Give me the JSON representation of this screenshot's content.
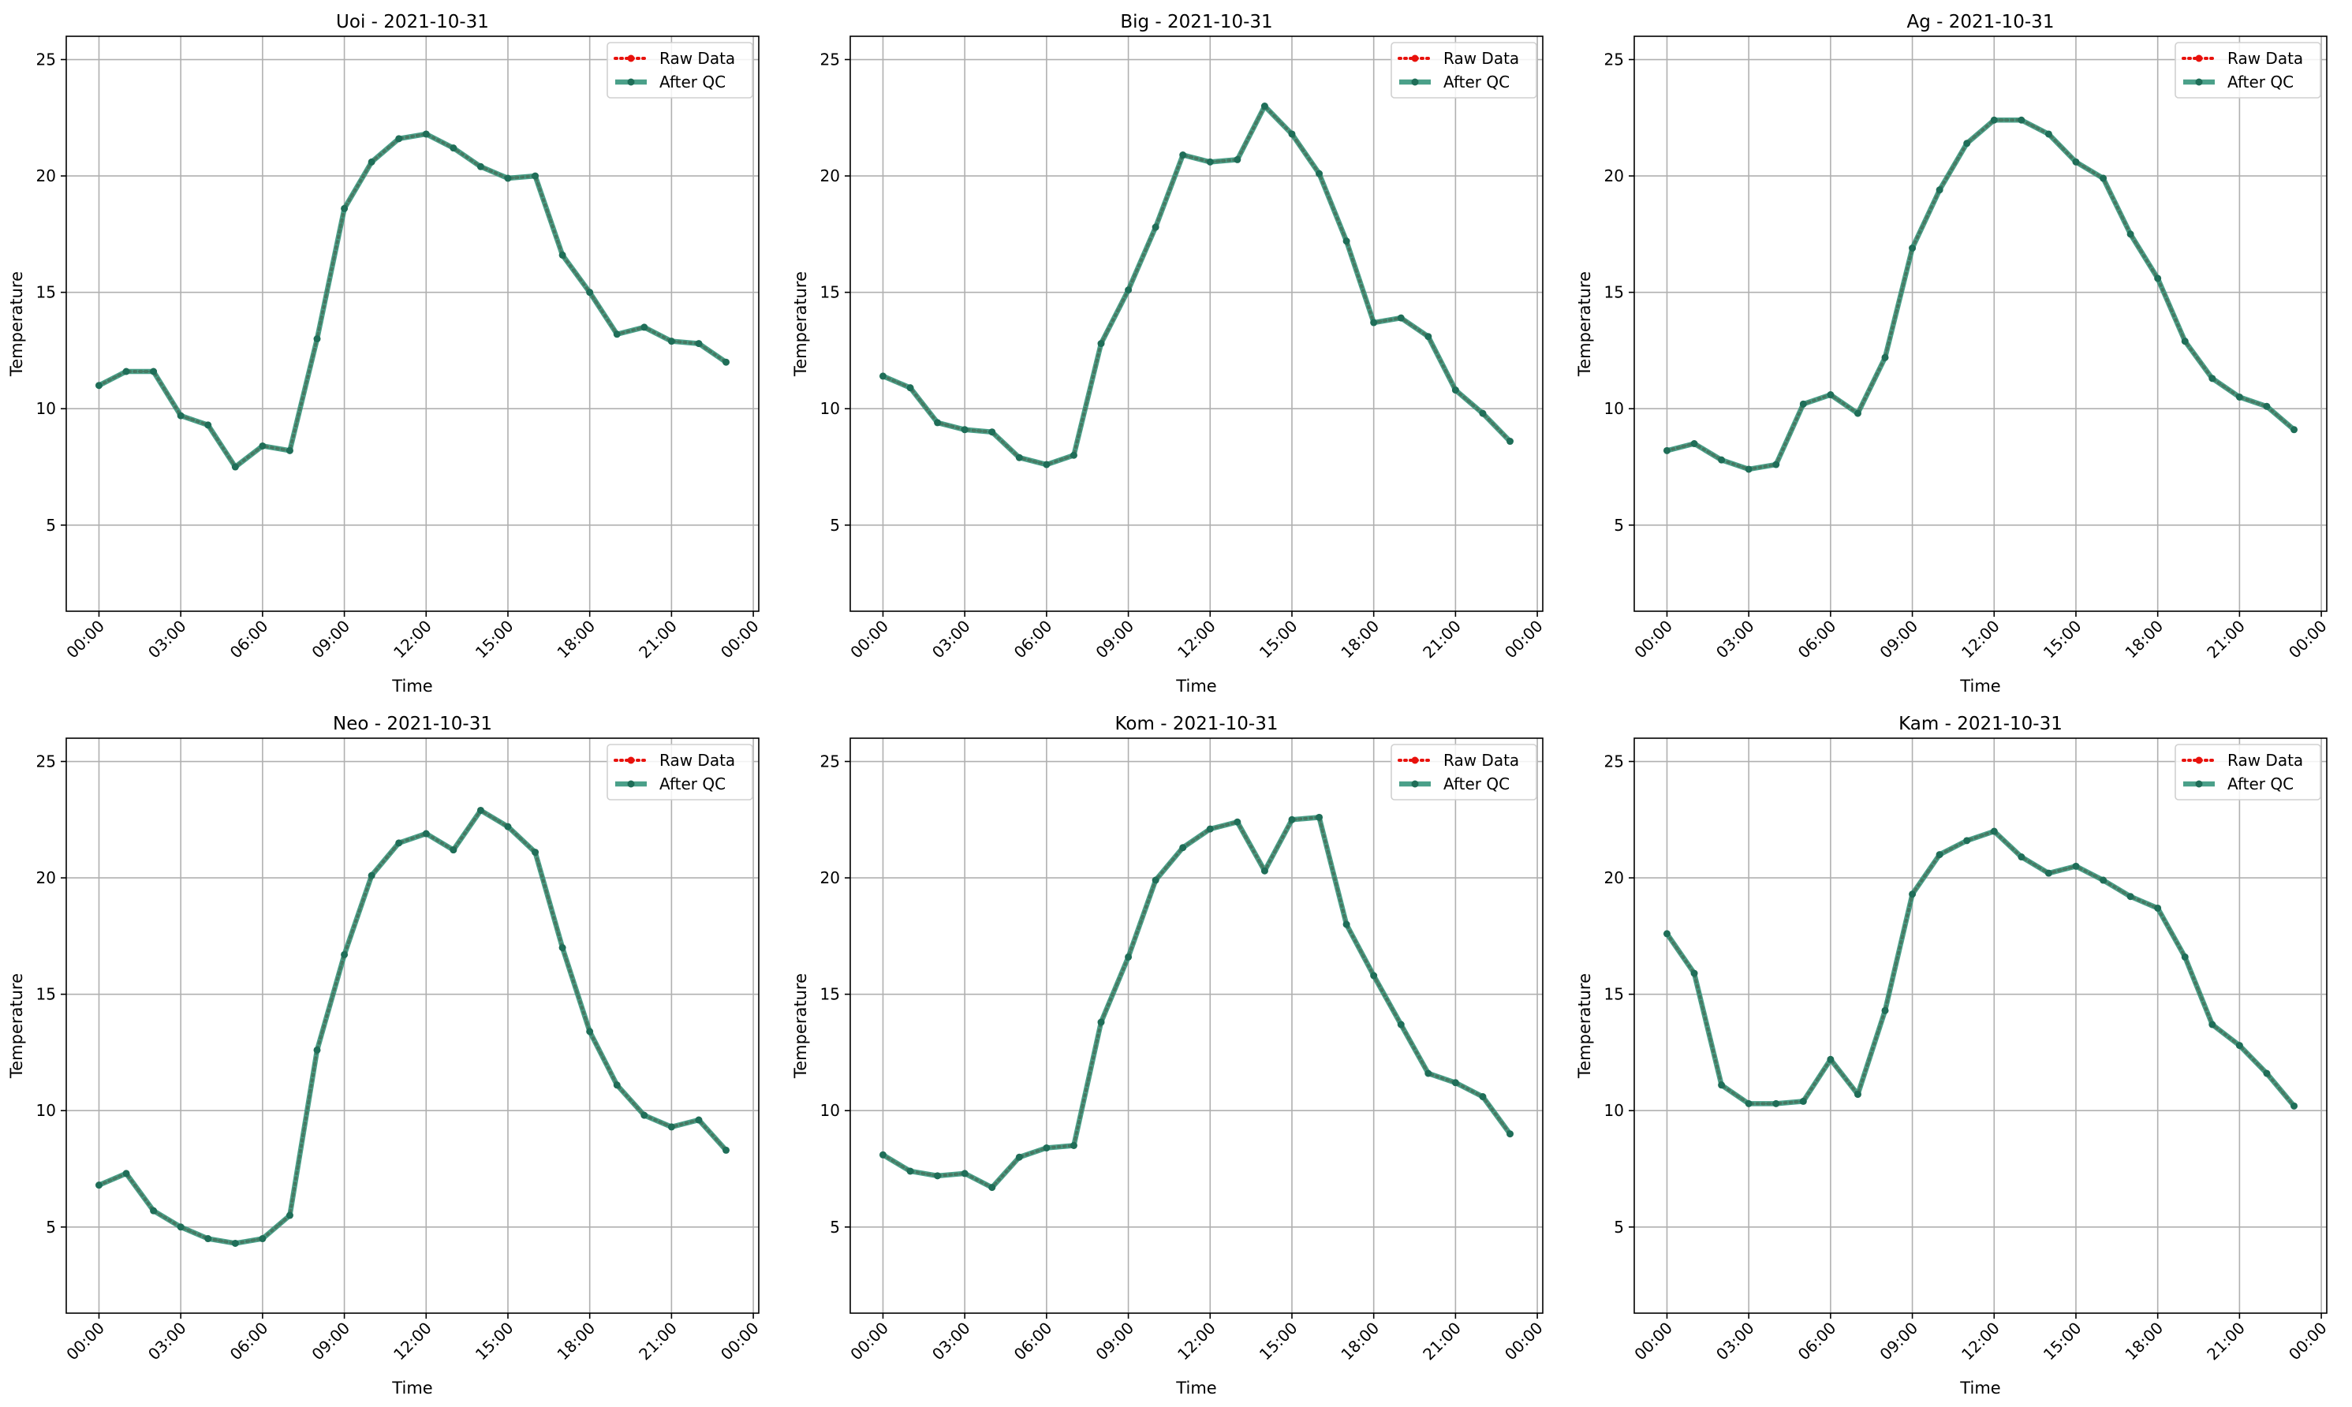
{
  "chart_data": [
    {
      "type": "line",
      "title": "Uoi - 2021-10-31",
      "xlabel": "Time",
      "ylabel": "Temperature",
      "ylim": [
        1.3,
        26
      ],
      "yticks": [
        5,
        10,
        15,
        20,
        25
      ],
      "xlim": [
        -1.2,
        24.2
      ],
      "xtick_hours": [
        0,
        3,
        6,
        9,
        12,
        15,
        18,
        21,
        24
      ],
      "xtick_labels": [
        "00:00",
        "03:00",
        "06:00",
        "09:00",
        "12:00",
        "15:00",
        "18:00",
        "21:00",
        "00:00"
      ],
      "grid": true,
      "legend_position": "top-right",
      "x": [
        0,
        1,
        2,
        3,
        4,
        5,
        6,
        7,
        8,
        9,
        10,
        11,
        12,
        13,
        14,
        15,
        16,
        17,
        18,
        19,
        20,
        21,
        22,
        23
      ],
      "series": [
        {
          "name": "Raw Data",
          "values": [
            11.0,
            11.6,
            11.6,
            9.7,
            9.3,
            7.5,
            8.4,
            8.2,
            13.0,
            18.6,
            20.6,
            21.6,
            21.8,
            21.2,
            20.4,
            19.9,
            20.0,
            16.6,
            15.0,
            13.2,
            13.5,
            12.9,
            12.8,
            12.0
          ]
        },
        {
          "name": "After QC",
          "values": [
            11.0,
            11.6,
            11.6,
            9.7,
            9.3,
            7.5,
            8.4,
            8.2,
            13.0,
            18.6,
            20.6,
            21.6,
            21.8,
            21.2,
            20.4,
            19.9,
            20.0,
            16.6,
            15.0,
            13.2,
            13.5,
            12.9,
            12.8,
            12.0
          ]
        }
      ]
    },
    {
      "type": "line",
      "title": "Big - 2021-10-31",
      "xlabel": "Time",
      "ylabel": "Temperature",
      "ylim": [
        1.3,
        26
      ],
      "yticks": [
        5,
        10,
        15,
        20,
        25
      ],
      "xlim": [
        -1.2,
        24.2
      ],
      "xtick_hours": [
        0,
        3,
        6,
        9,
        12,
        15,
        18,
        21,
        24
      ],
      "xtick_labels": [
        "00:00",
        "03:00",
        "06:00",
        "09:00",
        "12:00",
        "15:00",
        "18:00",
        "21:00",
        "00:00"
      ],
      "grid": true,
      "legend_position": "top-right",
      "x": [
        0,
        1,
        2,
        3,
        4,
        5,
        6,
        7,
        8,
        9,
        10,
        11,
        12,
        13,
        14,
        15,
        16,
        17,
        18,
        19,
        20,
        21,
        22,
        23
      ],
      "series": [
        {
          "name": "Raw Data",
          "values": [
            11.4,
            10.9,
            9.4,
            9.1,
            9.0,
            7.9,
            7.6,
            8.0,
            12.8,
            15.1,
            17.8,
            20.9,
            20.6,
            20.7,
            23.0,
            21.8,
            20.1,
            17.2,
            13.7,
            13.9,
            13.1,
            10.8,
            9.8,
            8.6
          ]
        },
        {
          "name": "After QC",
          "values": [
            11.4,
            10.9,
            9.4,
            9.1,
            9.0,
            7.9,
            7.6,
            8.0,
            12.8,
            15.1,
            17.8,
            20.9,
            20.6,
            20.7,
            23.0,
            21.8,
            20.1,
            17.2,
            13.7,
            13.9,
            13.1,
            10.8,
            9.8,
            8.6
          ]
        }
      ]
    },
    {
      "type": "line",
      "title": "Ag - 2021-10-31",
      "xlabel": "Time",
      "ylabel": "Temperature",
      "ylim": [
        1.3,
        26
      ],
      "yticks": [
        5,
        10,
        15,
        20,
        25
      ],
      "xlim": [
        -1.2,
        24.2
      ],
      "xtick_hours": [
        0,
        3,
        6,
        9,
        12,
        15,
        18,
        21,
        24
      ],
      "xtick_labels": [
        "00:00",
        "03:00",
        "06:00",
        "09:00",
        "12:00",
        "15:00",
        "18:00",
        "21:00",
        "00:00"
      ],
      "grid": true,
      "legend_position": "top-right",
      "x": [
        0,
        1,
        2,
        3,
        4,
        5,
        6,
        7,
        8,
        9,
        10,
        11,
        12,
        13,
        14,
        15,
        16,
        17,
        18,
        19,
        20,
        21,
        22,
        23
      ],
      "series": [
        {
          "name": "Raw Data",
          "values": [
            8.2,
            8.5,
            7.8,
            7.4,
            7.6,
            10.2,
            10.6,
            9.8,
            12.2,
            16.9,
            19.4,
            21.4,
            22.4,
            22.4,
            21.8,
            20.6,
            19.9,
            17.5,
            15.6,
            12.9,
            11.3,
            10.5,
            10.1,
            9.1
          ]
        },
        {
          "name": "After QC",
          "values": [
            8.2,
            8.5,
            7.8,
            7.4,
            7.6,
            10.2,
            10.6,
            9.8,
            12.2,
            16.9,
            19.4,
            21.4,
            22.4,
            22.4,
            21.8,
            20.6,
            19.9,
            17.5,
            15.6,
            12.9,
            11.3,
            10.5,
            10.1,
            9.1
          ]
        }
      ]
    },
    {
      "type": "line",
      "title": "Neo - 2021-10-31",
      "xlabel": "Time",
      "ylabel": "Temperature",
      "ylim": [
        1.3,
        26
      ],
      "yticks": [
        5,
        10,
        15,
        20,
        25
      ],
      "xlim": [
        -1.2,
        24.2
      ],
      "xtick_hours": [
        0,
        3,
        6,
        9,
        12,
        15,
        18,
        21,
        24
      ],
      "xtick_labels": [
        "00:00",
        "03:00",
        "06:00",
        "09:00",
        "12:00",
        "15:00",
        "18:00",
        "21:00",
        "00:00"
      ],
      "grid": true,
      "legend_position": "top-right",
      "x": [
        0,
        1,
        2,
        3,
        4,
        5,
        6,
        7,
        8,
        9,
        10,
        11,
        12,
        13,
        14,
        15,
        16,
        17,
        18,
        19,
        20,
        21,
        22,
        23
      ],
      "series": [
        {
          "name": "Raw Data",
          "values": [
            6.8,
            7.3,
            5.7,
            5.0,
            4.5,
            4.3,
            4.5,
            5.5,
            12.6,
            16.7,
            20.1,
            21.5,
            21.9,
            21.2,
            22.9,
            22.2,
            21.1,
            17.0,
            13.4,
            11.1,
            9.8,
            9.3,
            9.6,
            8.3
          ]
        },
        {
          "name": "After QC",
          "values": [
            6.8,
            7.3,
            5.7,
            5.0,
            4.5,
            4.3,
            4.5,
            5.5,
            12.6,
            16.7,
            20.1,
            21.5,
            21.9,
            21.2,
            22.9,
            22.2,
            21.1,
            17.0,
            13.4,
            11.1,
            9.8,
            9.3,
            9.6,
            8.3
          ]
        }
      ]
    },
    {
      "type": "line",
      "title": "Kom - 2021-10-31",
      "xlabel": "Time",
      "ylabel": "Temperature",
      "ylim": [
        1.3,
        26
      ],
      "yticks": [
        5,
        10,
        15,
        20,
        25
      ],
      "xlim": [
        -1.2,
        24.2
      ],
      "xtick_hours": [
        0,
        3,
        6,
        9,
        12,
        15,
        18,
        21,
        24
      ],
      "xtick_labels": [
        "00:00",
        "03:00",
        "06:00",
        "09:00",
        "12:00",
        "15:00",
        "18:00",
        "21:00",
        "00:00"
      ],
      "grid": true,
      "legend_position": "top-right",
      "x": [
        0,
        1,
        2,
        3,
        4,
        5,
        6,
        7,
        8,
        9,
        10,
        11,
        12,
        13,
        14,
        15,
        16,
        17,
        18,
        19,
        20,
        21,
        22,
        23
      ],
      "series": [
        {
          "name": "Raw Data",
          "values": [
            8.1,
            7.4,
            7.2,
            7.3,
            6.7,
            8.0,
            8.4,
            8.5,
            13.8,
            16.6,
            19.9,
            21.3,
            22.1,
            22.4,
            20.3,
            22.5,
            22.6,
            18.0,
            15.8,
            13.7,
            11.6,
            11.2,
            10.6,
            9.0
          ]
        },
        {
          "name": "After QC",
          "values": [
            8.1,
            7.4,
            7.2,
            7.3,
            6.7,
            8.0,
            8.4,
            8.5,
            13.8,
            16.6,
            19.9,
            21.3,
            22.1,
            22.4,
            20.3,
            22.5,
            22.6,
            18.0,
            15.8,
            13.7,
            11.6,
            11.2,
            10.6,
            9.0
          ]
        }
      ]
    },
    {
      "type": "line",
      "title": "Kam - 2021-10-31",
      "xlabel": "Time",
      "ylabel": "Temperature",
      "ylim": [
        1.3,
        26
      ],
      "yticks": [
        5,
        10,
        15,
        20,
        25
      ],
      "xlim": [
        -1.2,
        24.2
      ],
      "xtick_hours": [
        0,
        3,
        6,
        9,
        12,
        15,
        18,
        21,
        24
      ],
      "xtick_labels": [
        "00:00",
        "03:00",
        "06:00",
        "09:00",
        "12:00",
        "15:00",
        "18:00",
        "21:00",
        "00:00"
      ],
      "grid": true,
      "legend_position": "top-right",
      "x": [
        0,
        1,
        2,
        3,
        4,
        5,
        6,
        7,
        8,
        9,
        10,
        11,
        12,
        13,
        14,
        15,
        16,
        17,
        18,
        19,
        20,
        21,
        22,
        23
      ],
      "series": [
        {
          "name": "Raw Data",
          "values": [
            17.6,
            15.9,
            11.1,
            10.3,
            10.3,
            10.4,
            12.2,
            10.7,
            14.3,
            19.3,
            21.0,
            21.6,
            22.0,
            20.9,
            20.2,
            20.5,
            19.9,
            19.2,
            18.7,
            16.6,
            13.7,
            12.8,
            11.6,
            10.2
          ]
        },
        {
          "name": "After QC",
          "values": [
            17.6,
            15.9,
            11.1,
            10.3,
            10.3,
            10.4,
            12.2,
            10.7,
            14.3,
            19.3,
            21.0,
            21.6,
            22.0,
            20.9,
            20.2,
            20.5,
            19.9,
            19.2,
            18.7,
            16.6,
            13.7,
            12.8,
            11.6,
            10.2
          ]
        }
      ]
    }
  ],
  "colors": {
    "raw": "#e8110c",
    "qc": "#2a8f74",
    "qc_marker": "#1f6e58",
    "grid": "#b0b0b0",
    "axes": "#000000"
  }
}
